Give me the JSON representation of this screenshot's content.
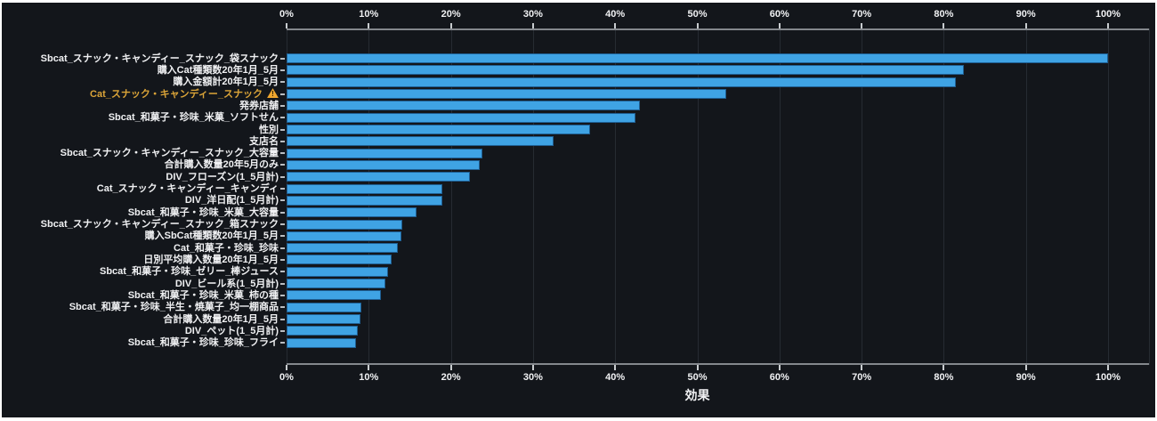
{
  "chart_data": {
    "type": "bar",
    "orientation": "horizontal",
    "title": "",
    "xlabel": "効果",
    "x_axis_ticks": [
      "0%",
      "10%",
      "20%",
      "30%",
      "40%",
      "50%",
      "60%",
      "70%",
      "80%",
      "90%",
      "100%"
    ],
    "x_tick_values": [
      0,
      10,
      20,
      30,
      40,
      50,
      60,
      70,
      80,
      90,
      100
    ],
    "xlim": [
      0,
      105
    ],
    "grid": true,
    "legend": "none",
    "categories": [
      "Sbcat_スナック・キャンディー_スナック_袋スナック",
      "購入Cat種類数20年1月_5月",
      "購入金額計20年1月_5月",
      "Cat_スナック・キャンディー_スナック",
      "発券店舗",
      "Sbcat_和菓子・珍味_米菓_ソフトせん",
      "性別",
      "支店名",
      "Sbcat_スナック・キャンディー_スナック_大容量",
      "合計購入数量20年5月のみ",
      "DIV_フローズン(1_5月計)",
      "Cat_スナック・キャンディー_キャンディ",
      "DIV_洋日配(1_5月計)",
      "Sbcat_和菓子・珍味_米菓_大容量",
      "Sbcat_スナック・キャンディー_スナック_箱スナック",
      "購入SbCat種類数20年1月_5月",
      "Cat_和菓子・珍味_珍味",
      "日別平均購入数量20年1月_5月",
      "Sbcat_和菓子・珍味_ゼリー_棒ジュース",
      "DIV_ビール系(1_5月計)",
      "Sbcat_和菓子・珍味_米菓_柿の種",
      "Sbcat_和菓子・珍味_半生・焼菓子_均一棚商品",
      "合計購入数量20年1月_5月",
      "DIV_ペット(1_5月計)",
      "Sbcat_和菓子・珍味_珍味_フライ"
    ],
    "values": [
      100,
      82.5,
      81.5,
      53.5,
      43,
      42.5,
      37,
      32.5,
      23.8,
      23.5,
      22.3,
      19,
      19,
      15.8,
      14.1,
      14,
      13.5,
      12.8,
      12.3,
      12,
      11.5,
      9.1,
      9,
      8.7,
      8.5
    ],
    "highlight": {
      "category_index": 3,
      "label_color": "#dba438",
      "warning_icon": true
    },
    "colors": {
      "bar_fill": "#3fa3e4",
      "bar_border": "#1f5f93",
      "background": "#13161b",
      "gridline": "#262b32",
      "axis_line": "#84888d",
      "text": "#f0f1f3"
    }
  }
}
